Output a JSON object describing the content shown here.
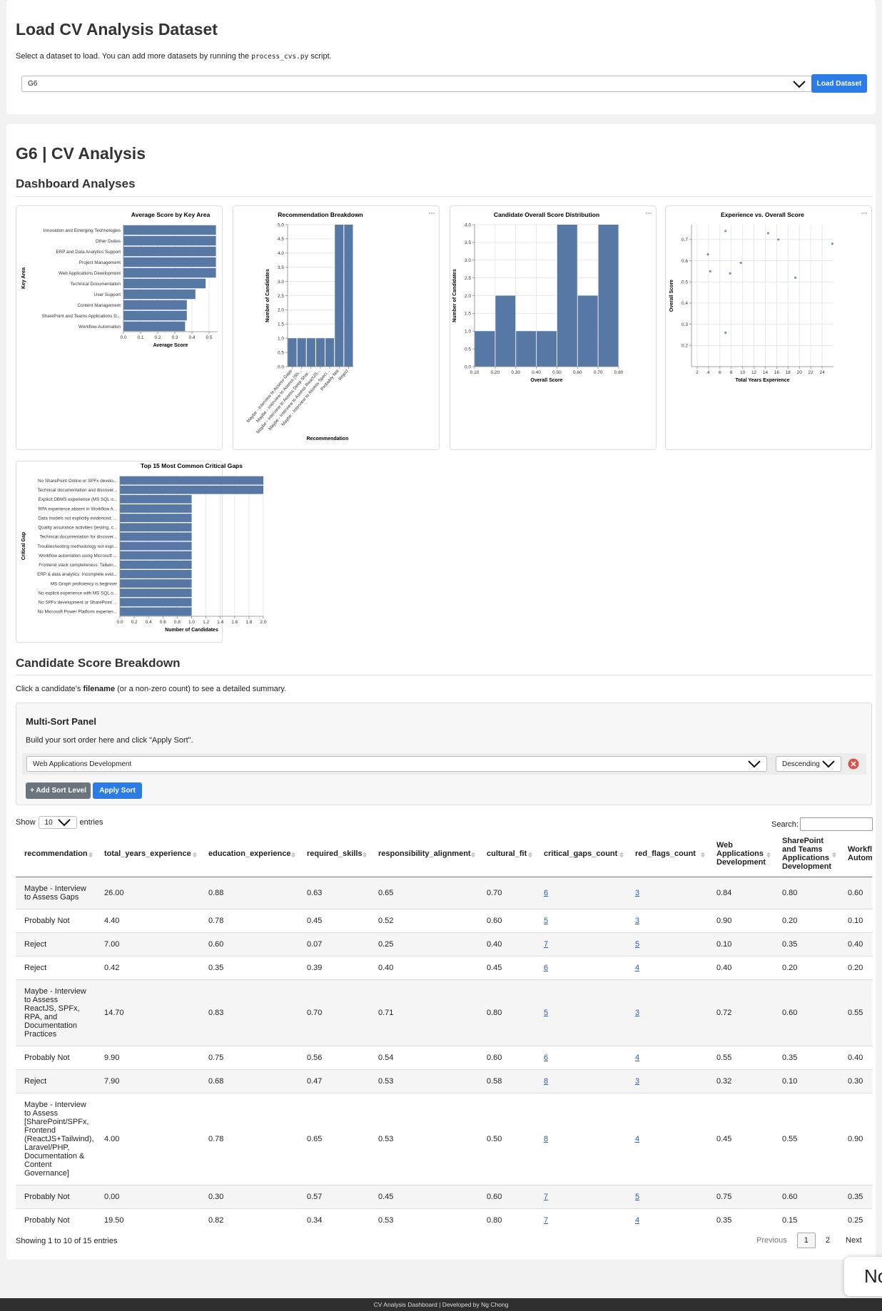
{
  "load": {
    "title": "Load CV Analysis Dataset",
    "desc_before": "Select a dataset to load. You can add more datasets by running the ",
    "desc_code": "process_cvs.py",
    "desc_after": " script.",
    "selected": "G6",
    "button": "Load Dataset"
  },
  "analysis": {
    "title": "G6 | CV Analysis",
    "heading": "Dashboard Analyses",
    "charts": [
      {
        "type": "bar",
        "orientation": "horizontal",
        "title": "Average Score by Key Area",
        "x_label": "Average Score",
        "y_label": "Key Area",
        "color": "#5778a4",
        "grid": true,
        "categories": [
          "Innovation and Emerging Technologies",
          "Other Duties",
          "ERP and Data Analytics Support",
          "Project Management",
          "Web Applications Development",
          "Technical Documentation",
          "User Support",
          "Content Management",
          "SharePoint and Teams Applications D...",
          "Workflow Automation"
        ],
        "values": [
          0.54,
          0.54,
          0.54,
          0.54,
          0.54,
          0.48,
          0.42,
          0.37,
          0.37,
          0.36
        ],
        "xlim": [
          0,
          0.55
        ],
        "xticks": [
          {
            "value": 0,
            "label": "0.0"
          },
          0.1,
          0.2,
          0.3,
          0.4,
          0.5
        ]
      },
      {
        "type": "bar",
        "orientation": "vertical",
        "title": "Recommendation Breakdown",
        "x_label": "Recommendation",
        "y_label": "Number of Candidates",
        "color": "#5778a4",
        "grid": true,
        "categories": [
          "Maybe - Interview to Assess Gaps",
          "Maybe - Interview to Assess [Sh...",
          "Maybe - Interview to Assess Deep Shar...",
          "Maybe - Interview to Assess ReactJS...",
          "Maybe - Interview to Assess Speci...",
          "Probably Not",
          "Reject"
        ],
        "values": [
          1,
          1,
          1,
          1,
          1,
          5,
          5
        ],
        "ylim": [
          0,
          5
        ],
        "yticks": [
          {
            "value": 0,
            "label": "0.0"
          },
          0.5,
          {
            "value": 1,
            "label": "1.0"
          },
          1.5,
          {
            "value": 2,
            "label": "2.0"
          },
          2.5,
          {
            "value": 3,
            "label": "3.0"
          },
          3.5,
          {
            "value": 4,
            "label": "4.0"
          },
          4.5,
          {
            "value": 5,
            "label": "5.0"
          }
        ]
      },
      {
        "type": "histogram",
        "title": "Candidate Overall Score Distribution",
        "x_label": "Overall Score",
        "y_label": "Number of Candidates",
        "color": "#5778a4",
        "grid": true,
        "bins": [
          0.1,
          0.2,
          0.3,
          0.4,
          0.5,
          0.6,
          0.7,
          0.8
        ],
        "values": [
          1,
          2,
          1,
          1,
          4,
          2,
          4
        ],
        "xlim": [
          0.1,
          0.8
        ],
        "xticks": [
          {
            "value": 0.1,
            "label": "0.10"
          },
          {
            "value": 0.2,
            "label": "0.20"
          },
          {
            "value": 0.3,
            "label": "0.30"
          },
          {
            "value": 0.4,
            "label": "0.40"
          },
          {
            "value": 0.5,
            "label": "0.50"
          },
          {
            "value": 0.6,
            "label": "0.60"
          },
          {
            "value": 0.7,
            "label": "0.70"
          },
          {
            "value": 0.8,
            "label": "0.80"
          }
        ],
        "ylim": [
          0,
          4
        ],
        "yticks": [
          {
            "value": 0,
            "label": "0.0"
          },
          0.5,
          {
            "value": 1,
            "label": "1.0"
          },
          1.5,
          {
            "value": 2,
            "label": "2.0"
          },
          2.5,
          {
            "value": 3,
            "label": "3.0"
          },
          3.5,
          {
            "value": 4,
            "label": "4.0"
          }
        ]
      },
      {
        "type": "scatter",
        "title": "Experience vs. Overall Score",
        "x_label": "Total Years Experience",
        "y_label": "Overall Score",
        "color": "#5778a4",
        "grid": true,
        "x": [
          3.9,
          4.3,
          7.0,
          7.0,
          7.8,
          9.7,
          14.5,
          16.3,
          19.3,
          25.8
        ],
        "values": [
          0.63,
          0.55,
          0.74,
          0.26,
          0.54,
          0.59,
          0.73,
          0.7,
          0.52,
          0.68
        ],
        "xlim": [
          1,
          26
        ],
        "xticks": [
          2,
          4,
          6,
          8,
          10,
          12,
          14,
          16,
          18,
          20,
          22,
          24
        ],
        "ylim": [
          0.1,
          0.77
        ],
        "yticks": [
          0.2,
          0.3,
          0.4,
          0.5,
          0.6,
          0.7
        ]
      },
      {
        "type": "bar",
        "orientation": "horizontal",
        "title": "Top 15 Most Common Critical Gaps",
        "x_label": "Number of Candidates",
        "y_label": "Critical Gap",
        "color": "#5778a4",
        "grid": true,
        "categories": [
          "No SharePoint Online or SPFx develo...",
          "Technical documentation and discover...",
          "Explicit DBMS experience (MS SQL o...",
          "RPA experience absent in Workflow A...",
          "Data models not explicitly evidenced; ...",
          "Quality assurance activities (testing, c...",
          "Technical documentation for discover...",
          "Troubleshooting methodology not expl...",
          "Workflow automation using Microsoft ...",
          "Frontend stack completeness: Tailwin...",
          "ERP & data analytics: Incomplete evid...",
          "MS Graph proficiency is beginner",
          "No explicit experience with MS SQL o...",
          "No SPFx development or SharePoint ...",
          "No Microsoft Power Platform experien..."
        ],
        "values": [
          2,
          2,
          1,
          1,
          1,
          1,
          1,
          1,
          1,
          1,
          1,
          1,
          1,
          1,
          1
        ],
        "xlim": [
          0,
          2
        ],
        "xticks": [
          {
            "value": 0,
            "label": "0.0"
          },
          0.2,
          0.4,
          0.6,
          0.8,
          {
            "value": 1,
            "label": "1.0"
          },
          1.2,
          1.4,
          1.6,
          1.8,
          {
            "value": 2,
            "label": "2.0"
          }
        ]
      }
    ]
  },
  "breakdown": {
    "heading": "Candidate Score Breakdown",
    "instr_before": "Click a candidate's ",
    "instr_bold": "filename",
    "instr_after": " (or a non-zero count) to see a detailed summary.",
    "panel": {
      "title": "Multi-Sort Panel",
      "desc": "Build your sort order here and click \"Apply Sort\".",
      "sort_field": "Web Applications Development",
      "sort_order": "Descending",
      "add_button": "+ Add Sort Level",
      "apply_button": "Apply Sort"
    },
    "show_before": "Show",
    "show_value": "10",
    "show_after": "entries",
    "search_label": "Search:",
    "table": {
      "columns": [
        "recommendation",
        "total_years_experience",
        "education_experience",
        "required_skills",
        "responsibility_alignment",
        "cultural_fit",
        "critical_gaps_count",
        "red_flags_count",
        "Web Applications Development",
        "SharePoint and Teams Applications Development",
        "Workflow Automation"
      ],
      "rows": [
        [
          "Maybe - Interview to Assess Gaps",
          "26.00",
          "0.88",
          "0.63",
          "0.65",
          "0.70",
          "6",
          "3",
          "0.84",
          "0.80",
          "0.60"
        ],
        [
          "Probably Not",
          "4.40",
          "0.78",
          "0.45",
          "0.52",
          "0.60",
          "5",
          "3",
          "0.90",
          "0.20",
          "0.10"
        ],
        [
          "Reject",
          "7.00",
          "0.60",
          "0.07",
          "0.25",
          "0.40",
          "7",
          "5",
          "0.10",
          "0.35",
          "0.40"
        ],
        [
          "Reject",
          "0.42",
          "0.35",
          "0.39",
          "0.40",
          "0.45",
          "6",
          "4",
          "0.40",
          "0.20",
          "0.20"
        ],
        [
          "Maybe - Interview to Assess ReactJS, SPFx, RPA, and Documentation Practices",
          "14.70",
          "0.83",
          "0.70",
          "0.71",
          "0.80",
          "5",
          "3",
          "0.72",
          "0.60",
          "0.55"
        ],
        [
          "Probably Not",
          "9.90",
          "0.75",
          "0.56",
          "0.54",
          "0.60",
          "6",
          "4",
          "0.55",
          "0.35",
          "0.40"
        ],
        [
          "Reject",
          "7.90",
          "0.68",
          "0.47",
          "0.53",
          "0.58",
          "8",
          "3",
          "0.32",
          "0.10",
          "0.30"
        ],
        [
          "Maybe - Interview to Assess [SharePoint/SPFx, Frontend (ReactJS+Tailwind), Laravel/PHP, Documentation & Content Governance]",
          "4.00",
          "0.78",
          "0.65",
          "0.53",
          "0.50",
          "8",
          "4",
          "0.45",
          "0.55",
          "0.90"
        ],
        [
          "Probably Not",
          "0.00",
          "0.30",
          "0.57",
          "0.45",
          "0.60",
          "7",
          "5",
          "0.75",
          "0.60",
          "0.35"
        ],
        [
          "Probably Not",
          "19.50",
          "0.82",
          "0.34",
          "0.53",
          "0.80",
          "7",
          "4",
          "0.35",
          "0.15",
          "0.25"
        ]
      ]
    },
    "info": "Showing 1 to 10 of 15 entries",
    "pagination": {
      "previous": "Previous",
      "pages": [
        "1",
        "2"
      ],
      "next": "Next"
    }
  },
  "toast": "No",
  "footer": "CV Analysis Dashboard | Developed by Ng Chong"
}
